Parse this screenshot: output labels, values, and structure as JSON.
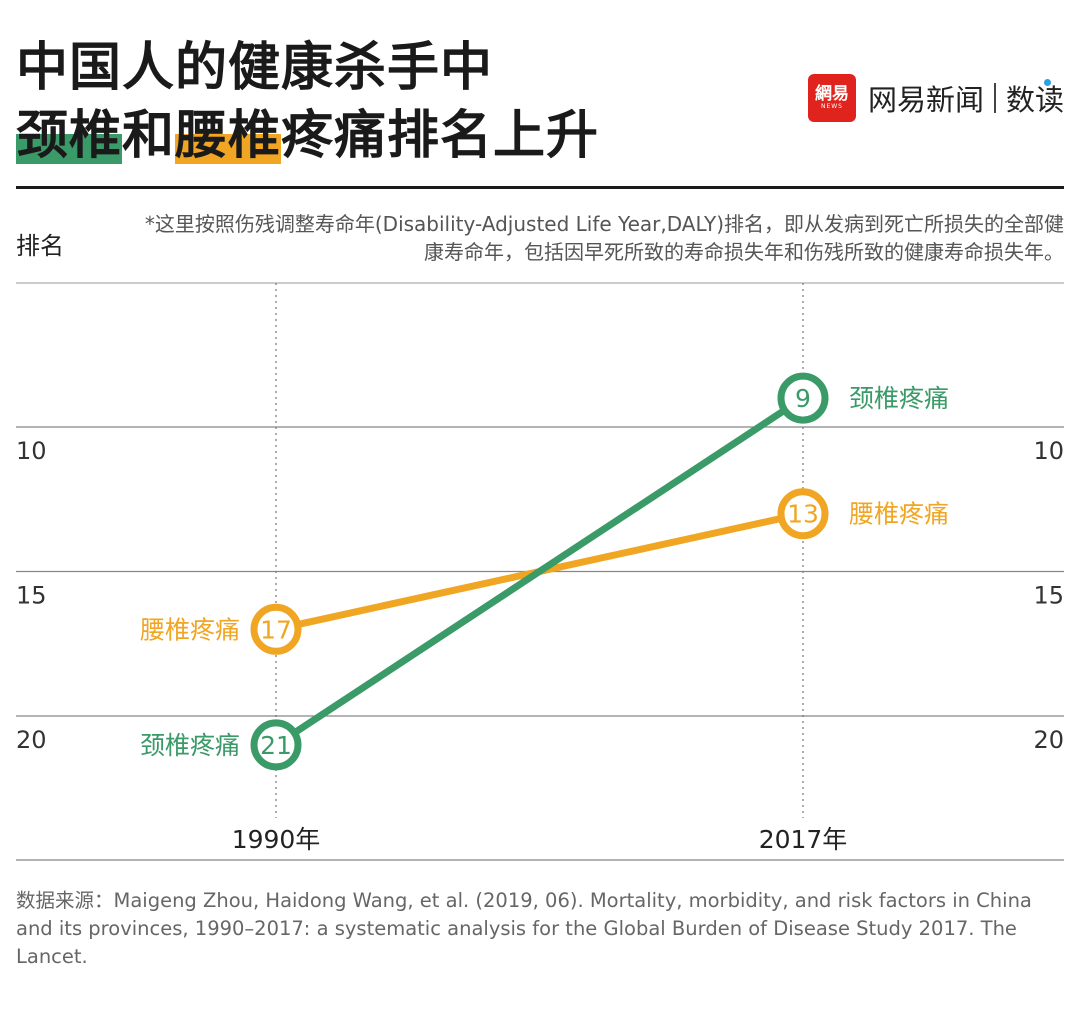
{
  "title": {
    "line1": "中国人的健康杀手中",
    "line2_hl1": "颈椎",
    "line2_mid": "和",
    "line2_hl2": "腰椎",
    "line2_rest": "疼痛排名上升"
  },
  "brand": {
    "logo_text": "網易",
    "logo_sub": "NEWS",
    "name": "网易新闻",
    "sub": "数读"
  },
  "note": "*这里按照伤残调整寿命年(Disability-Adjusted Life Year,DALY)排名，即从发病到死亡所损失的全部健康寿命年，包括因早死所致的寿命损失年和伤残所致的健康寿命损失年。",
  "source": "数据来源：Maigeng Zhou, Haidong Wang, et al. (2019, 06). Mortality, morbidity, and risk factors in China and its provinces, 1990–2017: a systematic analysis for the Global Burden of Disease Study 2017. The Lancet.",
  "colors": {
    "green": "#3a9a68",
    "orange": "#f0a623"
  },
  "chart_data": {
    "type": "line",
    "ylabel": "排名",
    "y_inverted": true,
    "ylim": [
      5,
      22
    ],
    "yticks": [
      10,
      15,
      20
    ],
    "categories": [
      "1990年",
      "2017年"
    ],
    "series": [
      {
        "name": "颈椎疼痛",
        "values": [
          21,
          9
        ],
        "color": "#3a9a68"
      },
      {
        "name": "腰椎疼痛",
        "values": [
          17,
          13
        ],
        "color": "#f0a623"
      }
    ]
  }
}
